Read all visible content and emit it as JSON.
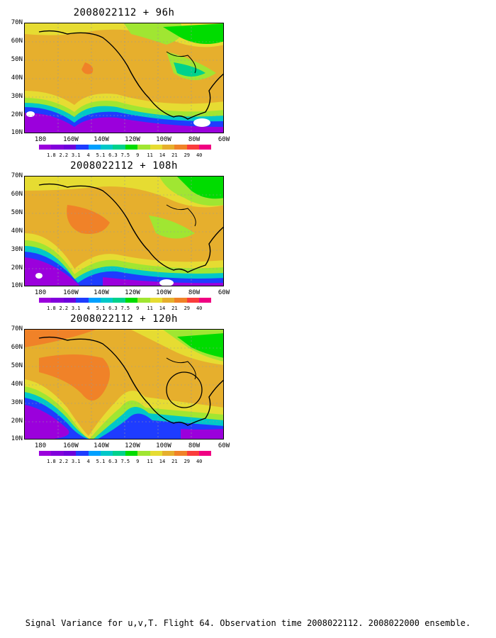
{
  "panels": [
    {
      "title": "2008022112 + 96h",
      "highlight_circle": false
    },
    {
      "title": "2008022112 + 108h",
      "highlight_circle": false
    },
    {
      "title": "2008022112 + 120h",
      "highlight_circle": true
    }
  ],
  "lat_labels": [
    "70N",
    "60N",
    "50N",
    "40N",
    "30N",
    "20N",
    "10N"
  ],
  "lon_labels": [
    "180",
    "160W",
    "140W",
    "120W",
    "100W",
    "80W",
    "60W"
  ],
  "colorbar": {
    "labels": [
      "1.8",
      "2.2",
      "3.1",
      "4",
      "5.1",
      "6.3",
      "7.5",
      "9",
      "11",
      "14",
      "21",
      "29",
      "40"
    ],
    "colors": [
      "#9b00dc",
      "#8200dc",
      "#6e00dc",
      "#1e3cff",
      "#00a0ff",
      "#00c8c8",
      "#00d28c",
      "#00dc00",
      "#a0e632",
      "#e6dc32",
      "#e6af2d",
      "#f08228",
      "#fa3c3c",
      "#f00082"
    ]
  },
  "caption": "Signal Variance for u,v,T. Flight 64. Observation time 2008022112. 2008022000 ensemble."
}
